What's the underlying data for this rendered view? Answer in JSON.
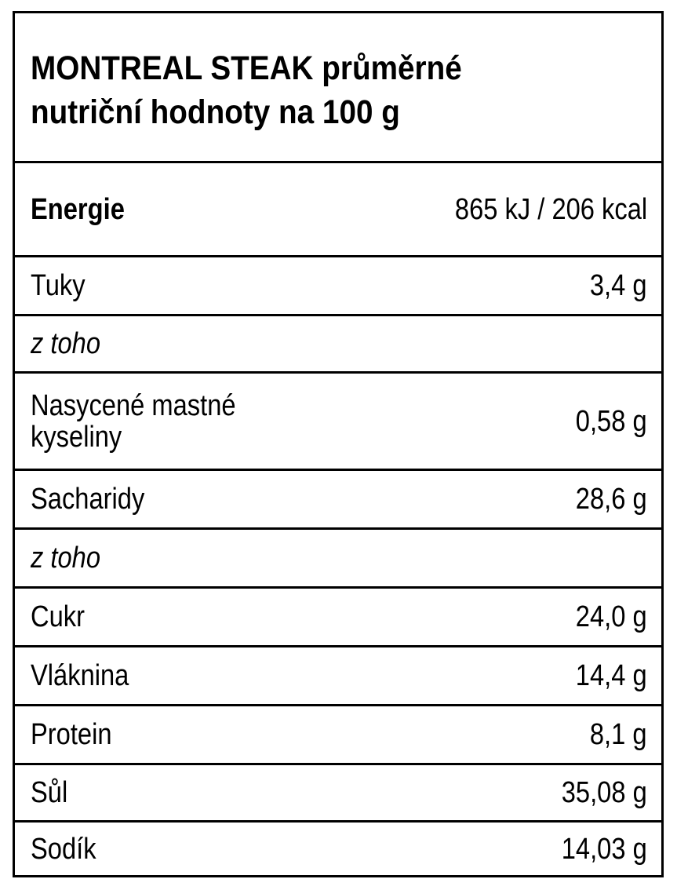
{
  "title": "MONTREAL STEAK průměrné nutriční hodnoty na 100 g",
  "title_lines": [
    "MONTREAL STEAK průměrné",
    "nutriční hodnoty na 100 g"
  ],
  "rows": [
    {
      "label": "Energie",
      "value": "865 kJ / 206 kcal",
      "style": "bold"
    },
    {
      "label": "Tuky",
      "value": "3,4 g"
    },
    {
      "label": "z toho",
      "value": "",
      "style": "italic"
    },
    {
      "label_lines": [
        "Nasycené mastné",
        "kyseliny"
      ],
      "value": "0,58 g"
    },
    {
      "label": "Sacharidy",
      "value": "28,6 g"
    },
    {
      "label": "z toho",
      "value": "",
      "style": "italic"
    },
    {
      "label": "Cukr",
      "value": "24,0 g"
    },
    {
      "label": "Vláknina",
      "value": "14,4 g"
    },
    {
      "label": "Protein",
      "value": "8,1 g"
    },
    {
      "label": "Sůl",
      "value": "35,08 g"
    },
    {
      "label": "Sodík",
      "value": "14,03 g"
    }
  ]
}
